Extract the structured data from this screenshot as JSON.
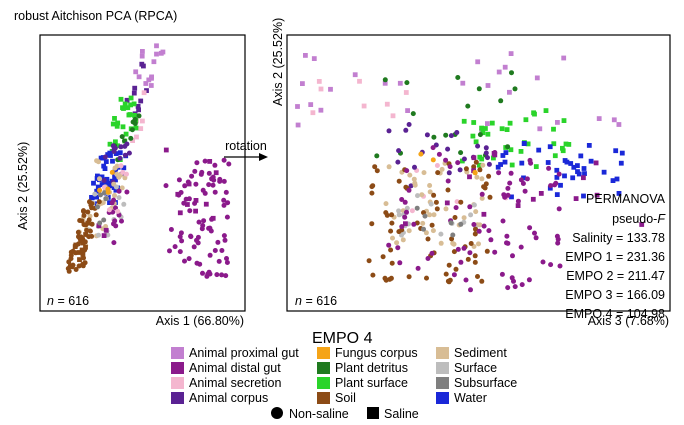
{
  "title": "robust Aitchison PCA (RPCA)",
  "rotation_label": "rotation",
  "colors": {
    "Animal proximal gut": "#c27fd0",
    "Animal distal gut": "#8b1a8b",
    "Animal secretion": "#f4b6cf",
    "Animal corpus": "#5a2293",
    "Fungus corpus": "#f5a417",
    "Plant detritus": "#1f7a1f",
    "Plant surface": "#2ad42a",
    "Soil": "#8c4b16",
    "Sediment": "#d8bd95",
    "Surface": "#bdbdbd",
    "Subsurface": "#7f7f7f",
    "Water": "#1a28d8"
  },
  "legend": {
    "title": "EMPO 4",
    "columns": [
      [
        "Animal proximal gut",
        "Animal distal gut",
        "Animal secretion",
        "Animal corpus"
      ],
      [
        "Fungus corpus",
        "Plant detritus",
        "Plant surface",
        "Soil"
      ],
      [
        "Sediment",
        "Surface",
        "Subsurface",
        "Water"
      ]
    ],
    "shapes": [
      {
        "label": "Non-saline",
        "shape": "circle"
      },
      {
        "label": "Saline",
        "shape": "square"
      }
    ]
  },
  "permanova": {
    "title": "PERMANOVA",
    "subtitle_prefix": "pseudo-",
    "subtitle_italic": "F",
    "rows": [
      {
        "label": "Salinity",
        "value": "133.78"
      },
      {
        "label": "EMPO 1",
        "value": "231.36"
      },
      {
        "label": "EMPO 2",
        "value": "211.47"
      },
      {
        "label": "EMPO 3",
        "value": "166.09"
      },
      {
        "label": "EMPO 4",
        "value": "104.98"
      }
    ]
  },
  "chart_data": [
    {
      "type": "scatter",
      "xlabel": "Axis 1 (66.80%)",
      "ylabel": "Axis 2 (25.52%)",
      "n_label_italic": "n",
      "n_label_value": "= 616",
      "xlim": [
        0,
        1
      ],
      "ylim": [
        0,
        1
      ],
      "clusters": [
        {
          "env": "Animal proximal gut",
          "shape": "square",
          "count": 14,
          "x": [
            0.3,
            0.62
          ],
          "y": [
            0.8,
            0.99
          ]
        },
        {
          "env": "Animal corpus",
          "shape": "square",
          "count": 10,
          "x": [
            0.28,
            0.52
          ],
          "y": [
            0.7,
            0.95
          ]
        },
        {
          "env": "Animal secretion",
          "shape": "square",
          "count": 6,
          "x": [
            0.4,
            0.62
          ],
          "y": [
            0.62,
            0.82
          ]
        },
        {
          "env": "Plant surface",
          "shape": "square",
          "count": 26,
          "x": [
            0.22,
            0.5
          ],
          "y": [
            0.55,
            0.8
          ]
        },
        {
          "env": "Plant detritus",
          "shape": "circle",
          "count": 10,
          "x": [
            0.3,
            0.55
          ],
          "y": [
            0.55,
            0.72
          ]
        },
        {
          "env": "Water",
          "shape": "square",
          "count": 48,
          "x": [
            0.15,
            0.48
          ],
          "y": [
            0.38,
            0.58
          ]
        },
        {
          "env": "Animal corpus",
          "shape": "circle",
          "count": 14,
          "x": [
            0.22,
            0.52
          ],
          "y": [
            0.45,
            0.62
          ]
        },
        {
          "env": "Sediment",
          "shape": "circle",
          "count": 34,
          "x": [
            0.12,
            0.52
          ],
          "y": [
            0.22,
            0.55
          ]
        },
        {
          "env": "Surface",
          "shape": "circle",
          "count": 16,
          "x": [
            0.2,
            0.58
          ],
          "y": [
            0.25,
            0.45
          ]
        },
        {
          "env": "Soil",
          "shape": "circle",
          "count": 50,
          "x": [
            0.1,
            0.3
          ],
          "y": [
            0.12,
            0.4
          ]
        },
        {
          "env": "Soil",
          "shape": "square",
          "count": 10,
          "x": [
            0.1,
            0.26
          ],
          "y": [
            0.15,
            0.32
          ]
        },
        {
          "env": "Animal distal gut",
          "shape": "circle",
          "count": 70,
          "x": [
            0.7,
            0.95
          ],
          "y": [
            0.1,
            0.55
          ]
        },
        {
          "env": "Animal distal gut",
          "shape": "circle",
          "count": 24,
          "x": [
            0.4,
            0.72
          ],
          "y": [
            0.18,
            0.5
          ]
        },
        {
          "env": "Animal distal gut",
          "shape": "square",
          "count": 14,
          "x": [
            0.3,
            0.9
          ],
          "y": [
            0.25,
            0.6
          ]
        },
        {
          "env": "Animal secretion",
          "shape": "circle",
          "count": 6,
          "x": [
            0.3,
            0.55
          ],
          "y": [
            0.35,
            0.55
          ]
        },
        {
          "env": "Subsurface",
          "shape": "circle",
          "count": 6,
          "x": [
            0.25,
            0.5
          ],
          "y": [
            0.28,
            0.45
          ]
        },
        {
          "env": "Fungus corpus",
          "shape": "circle",
          "count": 4,
          "x": [
            0.25,
            0.45
          ],
          "y": [
            0.4,
            0.55
          ]
        }
      ]
    },
    {
      "type": "scatter",
      "xlabel": "Axis 3 (7.68%)",
      "ylabel": "Axis 2 (25.52%)",
      "n_label_italic": "n",
      "n_label_value": "= 616",
      "xlim": [
        0,
        1
      ],
      "ylim": [
        0,
        1
      ],
      "clusters": [
        {
          "env": "Animal proximal gut",
          "shape": "square",
          "count": 28,
          "x": [
            0.0,
            0.98
          ],
          "y": [
            0.65,
            0.98
          ]
        },
        {
          "env": "Animal secretion",
          "shape": "square",
          "count": 8,
          "x": [
            0.05,
            0.35
          ],
          "y": [
            0.72,
            0.9
          ]
        },
        {
          "env": "Animal secretion",
          "shape": "circle",
          "count": 6,
          "x": [
            0.3,
            0.6
          ],
          "y": [
            0.35,
            0.55
          ]
        },
        {
          "env": "Plant surface",
          "shape": "square",
          "count": 36,
          "x": [
            0.45,
            0.75
          ],
          "y": [
            0.52,
            0.75
          ]
        },
        {
          "env": "Plant detritus",
          "shape": "circle",
          "count": 18,
          "x": [
            0.22,
            0.6
          ],
          "y": [
            0.55,
            0.9
          ]
        },
        {
          "env": "Water",
          "shape": "square",
          "count": 40,
          "x": [
            0.55,
            0.9
          ],
          "y": [
            0.4,
            0.62
          ]
        },
        {
          "env": "Animal corpus",
          "shape": "circle",
          "count": 22,
          "x": [
            0.25,
            0.55
          ],
          "y": [
            0.45,
            0.7
          ]
        },
        {
          "env": "Sediment",
          "shape": "circle",
          "count": 44,
          "x": [
            0.25,
            0.52
          ],
          "y": [
            0.2,
            0.55
          ]
        },
        {
          "env": "Surface",
          "shape": "circle",
          "count": 16,
          "x": [
            0.28,
            0.5
          ],
          "y": [
            0.25,
            0.42
          ]
        },
        {
          "env": "Soil",
          "shape": "circle",
          "count": 70,
          "x": [
            0.2,
            0.55
          ],
          "y": [
            0.08,
            0.55
          ]
        },
        {
          "env": "Animal distal gut",
          "shape": "circle",
          "count": 80,
          "x": [
            0.25,
            0.72
          ],
          "y": [
            0.05,
            0.6
          ]
        },
        {
          "env": "Animal distal gut",
          "shape": "square",
          "count": 16,
          "x": [
            0.3,
            0.95
          ],
          "y": [
            0.3,
            0.6
          ]
        },
        {
          "env": "Subsurface",
          "shape": "circle",
          "count": 6,
          "x": [
            0.3,
            0.5
          ],
          "y": [
            0.25,
            0.4
          ]
        },
        {
          "env": "Fungus corpus",
          "shape": "circle",
          "count": 4,
          "x": [
            0.3,
            0.5
          ],
          "y": [
            0.45,
            0.6
          ]
        }
      ]
    }
  ]
}
